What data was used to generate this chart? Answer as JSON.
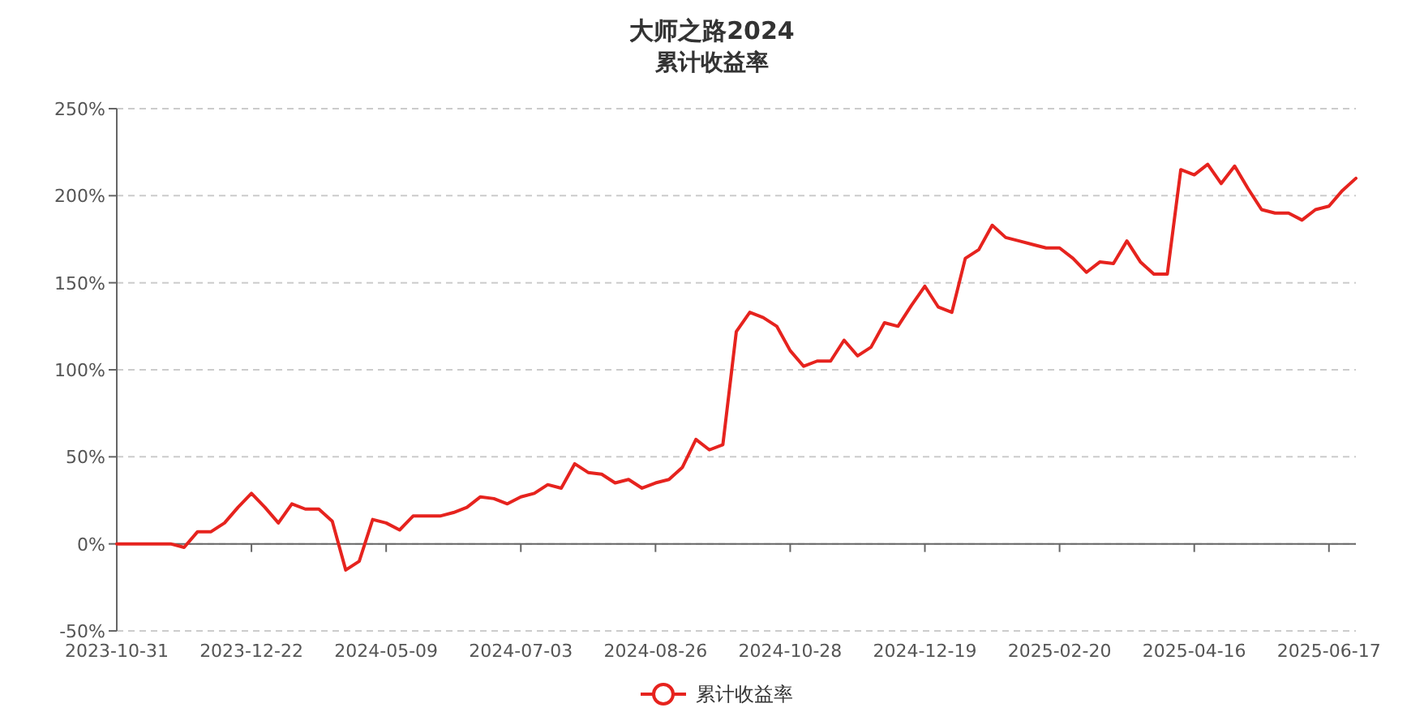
{
  "chart_data": {
    "type": "line",
    "title": "大师之路2024",
    "subtitle": "累计收益率",
    "categories": [
      "2023-10-31",
      null,
      null,
      null,
      null,
      null,
      null,
      null,
      null,
      null,
      "2023-12-22",
      null,
      null,
      null,
      null,
      null,
      null,
      null,
      null,
      null,
      "2024-05-09",
      null,
      null,
      null,
      null,
      null,
      null,
      null,
      null,
      null,
      "2024-07-03",
      null,
      null,
      null,
      null,
      null,
      null,
      null,
      null,
      null,
      "2024-08-26",
      null,
      null,
      null,
      null,
      null,
      null,
      null,
      null,
      null,
      "2024-10-28",
      null,
      null,
      null,
      null,
      null,
      null,
      null,
      null,
      null,
      "2024-12-19",
      null,
      null,
      null,
      null,
      null,
      null,
      null,
      null,
      null,
      "2025-02-20",
      null,
      null,
      null,
      null,
      null,
      null,
      null,
      null,
      null,
      "2025-04-16",
      null,
      null,
      null,
      null,
      null,
      null,
      null,
      null,
      null,
      "2025-06-17",
      null,
      null
    ],
    "series": [
      {
        "name": "累计收益率",
        "color": "#e6231e",
        "values": [
          0,
          0,
          0,
          0,
          0,
          -2,
          7,
          7,
          12,
          21,
          29,
          21,
          12,
          23,
          20,
          20,
          13,
          -15,
          -10,
          14,
          12,
          8,
          16,
          16,
          16,
          18,
          21,
          27,
          26,
          23,
          27,
          29,
          34,
          32,
          46,
          41,
          40,
          35,
          37,
          32,
          35,
          37,
          44,
          60,
          54,
          57,
          122,
          133,
          130,
          125,
          111,
          102,
          105,
          105,
          117,
          108,
          113,
          127,
          125,
          137,
          148,
          136,
          133,
          164,
          169,
          183,
          176,
          174,
          172,
          170,
          170,
          164,
          156,
          162,
          161,
          174,
          162,
          155,
          155,
          215,
          212,
          218,
          207,
          217,
          204,
          192,
          190,
          190,
          186,
          192,
          194,
          203,
          210
        ]
      }
    ],
    "ylim": [
      -50,
      250
    ],
    "yticks": [
      {
        "value": -50,
        "label": "-50%"
      },
      {
        "value": 0,
        "label": "0%"
      },
      {
        "value": 50,
        "label": "50%"
      },
      {
        "value": 100,
        "label": "100%"
      },
      {
        "value": 150,
        "label": "150%"
      },
      {
        "value": 200,
        "label": "200%"
      },
      {
        "value": 250,
        "label": "250%"
      }
    ],
    "grid": "y",
    "legend": "bottom"
  }
}
